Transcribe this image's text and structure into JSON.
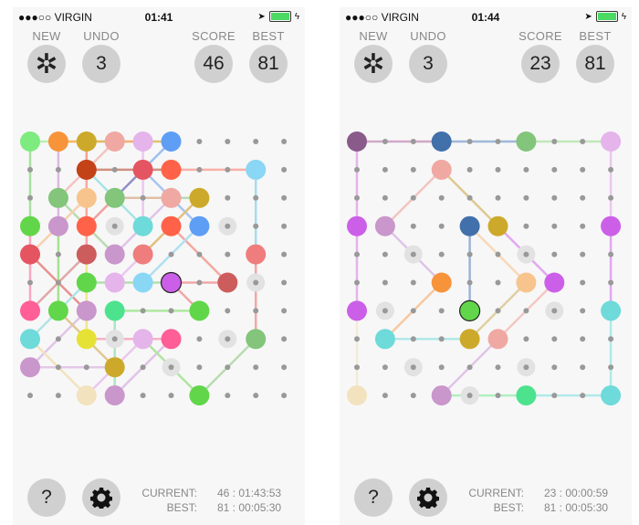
{
  "screens": [
    {
      "status": {
        "carrier": "●●●○○ VIRGIN",
        "time": "01:41"
      },
      "header": {
        "new_label": "NEW",
        "new_icon": "asterisk-icon",
        "undo_label": "UNDO",
        "undo_value": "3",
        "score_label": "SCORE",
        "score_value": "46",
        "best_label": "BEST",
        "best_value": "81"
      },
      "footer": {
        "current_label": "CURRENT:",
        "current_value": "46 : 01:43:53",
        "best_label": "BEST:",
        "best_value": "81 : 00:05:30",
        "help_label": "?",
        "settings_icon": "gear-icon"
      },
      "board": {
        "size": 10,
        "selected": [
          5,
          5
        ],
        "pieces": [
          [
            0,
            0,
            "#7EEB7E"
          ],
          [
            0,
            1,
            "#F7943A"
          ],
          [
            0,
            2,
            "#CDA92B"
          ],
          [
            0,
            3,
            "#F0A8A3"
          ],
          [
            0,
            4,
            "#E4B4EA"
          ],
          [
            0,
            5,
            "#5E9EF5"
          ],
          [
            1,
            2,
            "#C44217"
          ],
          [
            1,
            4,
            "#E55561"
          ],
          [
            1,
            5,
            "#FF6248"
          ],
          [
            1,
            8,
            "#8AD6F5"
          ],
          [
            2,
            1,
            "#82C57B"
          ],
          [
            2,
            2,
            "#F8C48D"
          ],
          [
            2,
            3,
            "#82C57B"
          ],
          [
            2,
            5,
            "#F0A8A3"
          ],
          [
            2,
            6,
            "#CDA92B"
          ],
          [
            3,
            0,
            "#62D64A"
          ],
          [
            3,
            1,
            "#C997CB"
          ],
          [
            3,
            2,
            "#FF6248"
          ],
          [
            3,
            4,
            "#6EDADA"
          ],
          [
            3,
            5,
            "#FF6248"
          ],
          [
            3,
            6,
            "#5E9EF5"
          ],
          [
            4,
            0,
            "#E55561"
          ],
          [
            4,
            2,
            "#CD5C5C"
          ],
          [
            4,
            3,
            "#C997CB"
          ],
          [
            4,
            4,
            "#EF7D7D"
          ],
          [
            4,
            8,
            "#EF7D7D"
          ],
          [
            5,
            2,
            "#62D64A"
          ],
          [
            5,
            3,
            "#E4B4EA"
          ],
          [
            5,
            4,
            "#8AD6F5"
          ],
          [
            5,
            5,
            "#CC5FE8"
          ],
          [
            5,
            7,
            "#CD5C5C"
          ],
          [
            6,
            0,
            "#FF5E96"
          ],
          [
            6,
            1,
            "#62D64A"
          ],
          [
            6,
            2,
            "#C997CB"
          ],
          [
            6,
            3,
            "#4DE38E"
          ],
          [
            6,
            6,
            "#62D64A"
          ],
          [
            7,
            0,
            "#6EDADA"
          ],
          [
            7,
            2,
            "#E6E235"
          ],
          [
            7,
            4,
            "#E4B4EA"
          ],
          [
            7,
            5,
            "#FF5E96"
          ],
          [
            7,
            8,
            "#82C57B"
          ],
          [
            8,
            0,
            "#C997CB"
          ],
          [
            8,
            3,
            "#CDA92B"
          ],
          [
            9,
            2,
            "#F2E2BE"
          ],
          [
            9,
            3,
            "#C997CB"
          ],
          [
            9,
            6,
            "#62D64A"
          ]
        ],
        "blocked": [
          [
            3,
            3
          ],
          [
            3,
            7
          ],
          [
            5,
            8
          ],
          [
            7,
            3
          ],
          [
            7,
            7
          ],
          [
            8,
            5
          ]
        ],
        "links": [
          [
            0,
            0,
            0,
            1,
            "#B8F0B0"
          ],
          [
            0,
            1,
            0,
            2,
            "#F0B860"
          ],
          [
            0,
            2,
            0,
            3,
            "#E0B860"
          ],
          [
            0,
            3,
            0,
            4,
            "#F4B070"
          ],
          [
            0,
            4,
            0,
            5,
            "#E0C070"
          ],
          [
            0,
            0,
            3,
            0,
            "#A8E0A0"
          ],
          [
            0,
            1,
            3,
            1,
            "#DDB8E0"
          ],
          [
            0,
            2,
            1,
            2,
            "#F8A090"
          ],
          [
            0,
            3,
            2,
            1,
            "#F4C4C0"
          ],
          [
            0,
            4,
            1,
            4,
            "#EAC8EE"
          ],
          [
            0,
            5,
            1,
            4,
            "#9EC0F0"
          ],
          [
            1,
            2,
            1,
            5,
            "#D09080"
          ],
          [
            1,
            5,
            1,
            8,
            "#F8B0A8"
          ],
          [
            1,
            8,
            4,
            8,
            "#A8DCF0"
          ],
          [
            4,
            8,
            7,
            8,
            "#F0A8A8"
          ],
          [
            1,
            2,
            3,
            4,
            "#A8E4E4"
          ],
          [
            1,
            2,
            4,
            2,
            "#F8A8A0"
          ],
          [
            1,
            4,
            2,
            3,
            "#9090C8"
          ],
          [
            1,
            4,
            3,
            6,
            "#A8C4F0"
          ],
          [
            1,
            4,
            3,
            4,
            "#EAC8EE"
          ],
          [
            2,
            1,
            3,
            2,
            "#B8DCB0"
          ],
          [
            2,
            2,
            4,
            0,
            "#F8D0B0"
          ],
          [
            2,
            3,
            2,
            5,
            "#E0C0A8"
          ],
          [
            2,
            5,
            2,
            6,
            "#B8DCB0"
          ],
          [
            2,
            3,
            3,
            2,
            "#F0A0A0"
          ],
          [
            2,
            6,
            4,
            4,
            "#E0C080"
          ],
          [
            2,
            5,
            4,
            3,
            "#E0C4E8"
          ],
          [
            3,
            0,
            6,
            0,
            "#F8A8C0"
          ],
          [
            3,
            1,
            6,
            1,
            "#A8E090"
          ],
          [
            3,
            2,
            4,
            3,
            "#B8DCB0"
          ],
          [
            3,
            5,
            5,
            7,
            "#F4A8A0"
          ],
          [
            3,
            6,
            5,
            4,
            "#B0E0F0"
          ],
          [
            4,
            0,
            6,
            2,
            "#E89090"
          ],
          [
            4,
            2,
            6,
            0,
            "#E0A8A8"
          ],
          [
            4,
            2,
            7,
            2,
            "#EEE890"
          ],
          [
            4,
            4,
            5,
            3,
            "#EAC8EE"
          ],
          [
            5,
            2,
            5,
            5,
            "#B0E0B0"
          ],
          [
            5,
            5,
            5,
            7,
            "#F0A8A8"
          ],
          [
            5,
            5,
            6,
            6,
            "#F0A8A8"
          ],
          [
            7,
            0,
            5,
            2,
            "#B0E4E4"
          ],
          [
            6,
            3,
            6,
            6,
            "#B0E8A0"
          ],
          [
            6,
            3,
            8,
            3,
            "#A8E8C0"
          ],
          [
            6,
            2,
            8,
            0,
            "#E0C4E8"
          ],
          [
            6,
            1,
            8,
            3,
            "#E0C890"
          ],
          [
            7,
            2,
            7,
            5,
            "#F8B0C8"
          ],
          [
            7,
            0,
            9,
            2,
            "#F2E2BE"
          ],
          [
            8,
            0,
            8,
            3,
            "#E4C8E8"
          ],
          [
            7,
            4,
            9,
            2,
            "#EAC8EE"
          ],
          [
            7,
            5,
            9,
            3,
            "#E0C4E8"
          ],
          [
            7,
            4,
            9,
            6,
            "#B0E4A0"
          ],
          [
            9,
            6,
            7,
            8,
            "#B8DCB0"
          ],
          [
            8,
            3,
            9,
            3,
            "#A8E8C0"
          ]
        ]
      }
    },
    {
      "status": {
        "carrier": "●●●○○ VIRGIN",
        "time": "01:44"
      },
      "header": {
        "new_label": "NEW",
        "new_icon": "asterisk-icon",
        "undo_label": "UNDO",
        "undo_value": "3",
        "score_label": "SCORE",
        "score_value": "23",
        "best_label": "BEST",
        "best_value": "81"
      },
      "footer": {
        "current_label": "CURRENT:",
        "current_value": "23 : 00:00:59",
        "best_label": "BEST:",
        "best_value": "81 : 00:05:30",
        "help_label": "?",
        "settings_icon": "gear-icon"
      },
      "board": {
        "size": 10,
        "selected": [
          6,
          4
        ],
        "pieces": [
          [
            0,
            0,
            "#8A5A8A"
          ],
          [
            0,
            3,
            "#4170AA"
          ],
          [
            0,
            6,
            "#82C57B"
          ],
          [
            0,
            9,
            "#E4B4EA"
          ],
          [
            1,
            3,
            "#F0A8A3"
          ],
          [
            3,
            0,
            "#CC5FE8"
          ],
          [
            3,
            1,
            "#C997CB"
          ],
          [
            3,
            4,
            "#4170AA"
          ],
          [
            3,
            5,
            "#CDA92B"
          ],
          [
            3,
            9,
            "#CC5FE8"
          ],
          [
            5,
            3,
            "#F7943A"
          ],
          [
            5,
            6,
            "#F8C48D"
          ],
          [
            5,
            7,
            "#CC5FE8"
          ],
          [
            6,
            0,
            "#CC5FE8"
          ],
          [
            6,
            4,
            "#62D64A"
          ],
          [
            6,
            9,
            "#6EDADA"
          ],
          [
            7,
            1,
            "#6EDADA"
          ],
          [
            7,
            4,
            "#CDA92B"
          ],
          [
            7,
            5,
            "#F0A8A3"
          ],
          [
            9,
            0,
            "#F2E2BE"
          ],
          [
            9,
            3,
            "#C997CB"
          ],
          [
            9,
            6,
            "#4DE38E"
          ],
          [
            9,
            9,
            "#6EDADA"
          ]
        ],
        "blocked": [
          [
            4,
            2
          ],
          [
            4,
            6
          ],
          [
            6,
            1
          ],
          [
            6,
            7
          ],
          [
            8,
            2
          ],
          [
            8,
            6
          ],
          [
            9,
            4
          ]
        ],
        "links": [
          [
            0,
            0,
            0,
            3,
            "#D0A8C8"
          ],
          [
            0,
            3,
            0,
            6,
            "#A0B8D8"
          ],
          [
            0,
            6,
            0,
            9,
            "#C0E8B8"
          ],
          [
            0,
            0,
            3,
            0,
            "#E4B4EA"
          ],
          [
            0,
            9,
            3,
            9,
            "#EAC8EE"
          ],
          [
            1,
            3,
            3,
            1,
            "#F4C4C0"
          ],
          [
            1,
            3,
            3,
            5,
            "#E0C890"
          ],
          [
            3,
            0,
            6,
            0,
            "#E4B4EA"
          ],
          [
            3,
            9,
            6,
            9,
            "#E0A8F0"
          ],
          [
            3,
            1,
            5,
            3,
            "#E0C4E8"
          ],
          [
            3,
            4,
            6,
            4,
            "#9CB4D4"
          ],
          [
            3,
            4,
            5,
            6,
            "#F8D8B8"
          ],
          [
            3,
            5,
            5,
            7,
            "#E0A8F0"
          ],
          [
            5,
            3,
            7,
            1,
            "#F8C8A0"
          ],
          [
            7,
            1,
            7,
            4,
            "#B0E8E8"
          ],
          [
            5,
            6,
            7,
            4,
            "#E0D0A0"
          ],
          [
            5,
            7,
            7,
            5,
            "#F4C8C4"
          ],
          [
            7,
            5,
            9,
            3,
            "#E0C4E8"
          ],
          [
            6,
            0,
            9,
            0,
            "#F2ECD8"
          ],
          [
            6,
            9,
            9,
            9,
            "#B0E8E8"
          ],
          [
            9,
            3,
            9,
            6,
            "#B0F0C0"
          ],
          [
            9,
            6,
            9,
            9,
            "#B0E8E8"
          ]
        ]
      }
    }
  ]
}
